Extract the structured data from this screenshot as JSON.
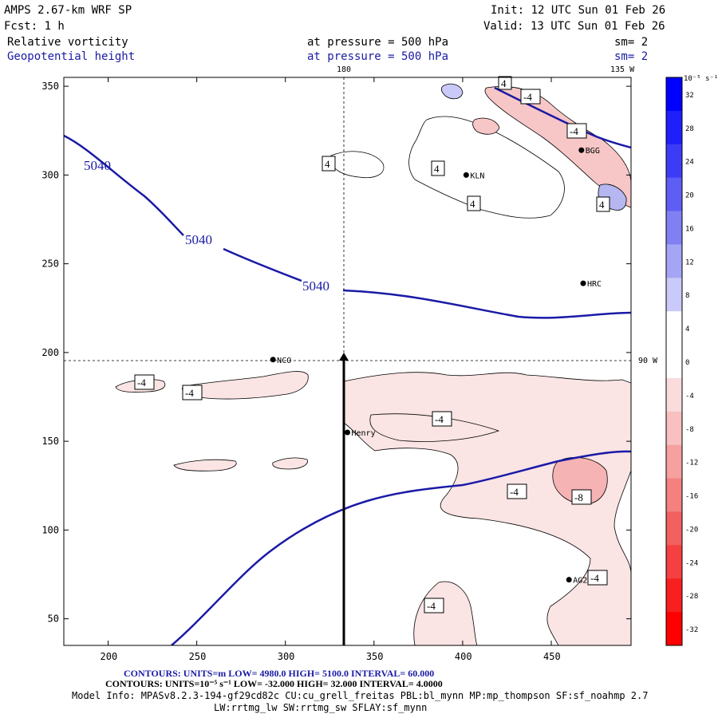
{
  "header": {
    "model": "AMPS 2.67-km WRF SP",
    "fcst": "Fcst:    1 h",
    "init": "Init: 12 UTC Sun 01 Feb 26",
    "valid": "Valid: 13 UTC Sun 01 Feb 26",
    "field1": "Relative vorticity",
    "field2": "Geopotential height",
    "pressure1": "at pressure =  500 hPa",
    "pressure2": "at pressure =  500 hPa",
    "sm1": "sm= 2",
    "sm2": "sm= 2"
  },
  "map": {
    "top_label_lon": "180",
    "top_label_right": "135 W",
    "right_label_90w": "90 W",
    "x_ticks": [
      "200",
      "250",
      "300",
      "350",
      "400",
      "450"
    ],
    "y_ticks": [
      "350",
      "300",
      "250",
      "200",
      "150",
      "100",
      "50"
    ],
    "stations": [
      {
        "name": "KLN",
        "x": 402,
        "y": 300
      },
      {
        "name": "BGG",
        "x": 467,
        "y": 314
      },
      {
        "name": "HRC",
        "x": 468,
        "y": 239
      },
      {
        "name": "NCO",
        "x": 293,
        "y": 196
      },
      {
        "name": "Henry",
        "x": 335,
        "y": 155
      },
      {
        "name": "AG2",
        "x": 460,
        "y": 72
      }
    ],
    "contour_labels_height": [
      "5040",
      "5040",
      "5040"
    ],
    "contour_labels_vort": [
      "4",
      "4",
      "4",
      "4",
      "-4",
      "-4",
      "4",
      "-4",
      "-4",
      "-4",
      "-4",
      "-8",
      "-4",
      "-4"
    ]
  },
  "colorbar": {
    "units": "10⁻⁵ s⁻¹",
    "ticks": [
      "32",
      "28",
      "24",
      "20",
      "16",
      "12",
      "8",
      "4",
      "0",
      "-4",
      "-8",
      "-12",
      "-16",
      "-20",
      "-24",
      "-28",
      "-32"
    ],
    "colors": [
      "#0000ff",
      "#1f1ffb",
      "#3c3cf7",
      "#5e5ef5",
      "#8080f3",
      "#a5a5f5",
      "#c9c9fa",
      "#ffffff",
      "#ffffff",
      "#fadcdc",
      "#f8c0c0",
      "#f6a0a0",
      "#f48080",
      "#f26060",
      "#f44040",
      "#f81f1f",
      "#ff0000"
    ]
  },
  "footer": {
    "line1": "CONTOURS:  UNITS=m  LOW=  4980.0       HIGH=  5100.0       INTERVAL=   60.000",
    "line2": "CONTOURS:  UNITS=10⁻⁵ s⁻¹  LOW=  -32.000       HIGH=  32.000       INTERVAL=   4.0000",
    "line3": "Model Info: MPASv8.2.3-194-gf29cd82c CU:cu_grell_freitas PBL:bl_mynn MP:mp_thompson SF:sf_noahmp 2.7",
    "line4": "LW:rrtmg_lw SW:rrtmg_sw SFLAY:sf_mynn"
  }
}
